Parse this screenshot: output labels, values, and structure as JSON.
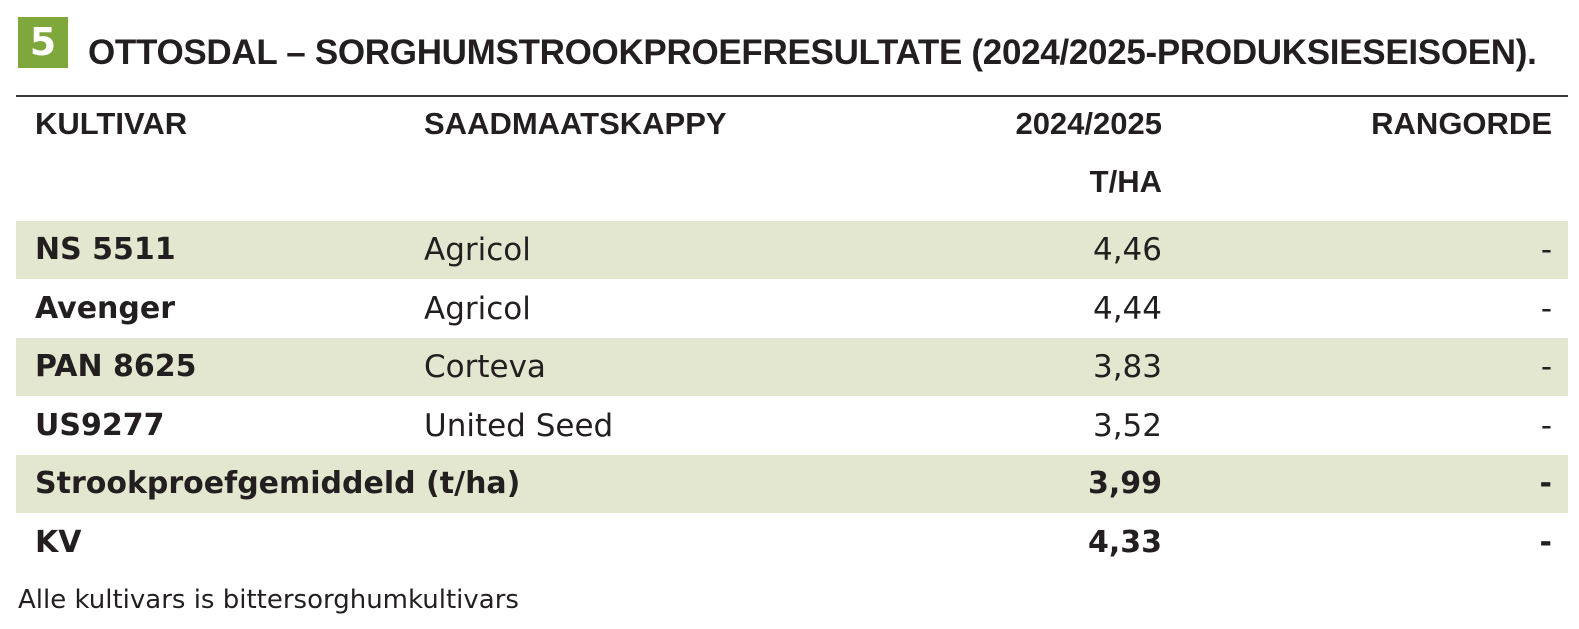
{
  "header": {
    "badge": "5",
    "title": "OTTOSDAL – SORGHUMSTROOKPROEFRESULTATE (2024/2025-PRODUKSIESEISOEN)."
  },
  "table": {
    "columns": [
      "KULTIVAR",
      "SAADMAATSKAPPY",
      [
        "2024/2025",
        "T/HA"
      ],
      "RANGORDE"
    ],
    "rows": [
      {
        "cultivar": "NS 5511",
        "company": "Agricol",
        "yield": "4,46",
        "rank": "-"
      },
      {
        "cultivar": "Avenger",
        "company": "Agricol",
        "yield": "4,44",
        "rank": "-"
      },
      {
        "cultivar": "PAN 8625",
        "company": "Corteva",
        "yield": "3,83",
        "rank": "-"
      },
      {
        "cultivar": "US9277",
        "company": "United Seed",
        "yield": "3,52",
        "rank": "-"
      }
    ],
    "summary": [
      {
        "label": "Strookproefgemiddeld (t/ha)",
        "yield": "3,99",
        "rank": "-"
      },
      {
        "label": "KV",
        "yield": "4,33",
        "rank": "-"
      }
    ]
  },
  "footnote": "Alle kultivars is bittersorghumkultivars"
}
